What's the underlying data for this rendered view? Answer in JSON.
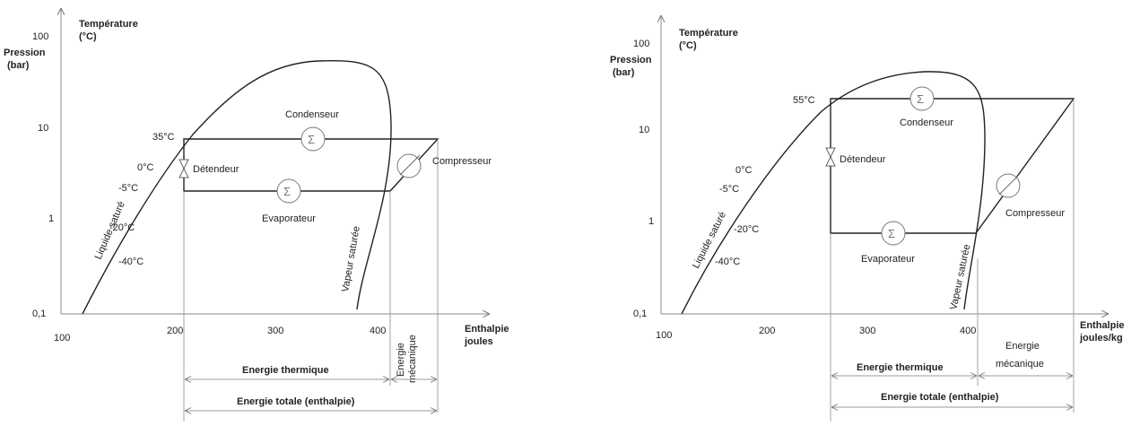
{
  "diagrams": [
    {
      "axis_y_top": "Température",
      "axis_y_unit": "(°C)",
      "axis_y_label": "Pression",
      "axis_y_label_unit": "(bar)",
      "y_ticks": [
        "100",
        "10",
        "1",
        "0,1"
      ],
      "x_ticks": [
        "100",
        "200",
        "300",
        "400"
      ],
      "x_label": "Enthalpie",
      "x_label_unit": "joules",
      "temps": [
        "35°C",
        "0°C",
        "-5°C",
        "-20°C",
        "-40°C"
      ],
      "condenseur": "Condenseur",
      "evaporateur": "Evaporateur",
      "detendeur": "Détendeur",
      "compresseur": "Compresseur",
      "liquide": "Liquide saturé",
      "vapeur": "Vapeur saturée",
      "energie_thermique": "Energie thermique",
      "energie_meca_1": "Energie",
      "energie_meca_2": "mécanique",
      "energie_totale": "Energie totale (enthalpie)"
    },
    {
      "axis_y_top": "Température",
      "axis_y_unit": "(°C)",
      "axis_y_label": "Pression",
      "axis_y_label_unit": "(bar)",
      "y_ticks": [
        "100",
        "10",
        "1",
        "0,1"
      ],
      "x_ticks": [
        "100",
        "200",
        "300",
        "400"
      ],
      "x_label": "Enthalpie",
      "x_label_unit": "joules/kg",
      "temps": [
        "55°C",
        "0°C",
        "-5°C",
        "-20°C",
        "-40°C"
      ],
      "condenseur": "Condenseur",
      "evaporateur": "Evaporateur",
      "detendeur": "Détendeur",
      "compresseur": "Compresseur",
      "liquide": "Liquide saturé",
      "vapeur": "Vapeur saturée",
      "energie_thermique": "Energie thermique",
      "energie_meca_1": "Energie",
      "energie_meca_2": "mécanique",
      "energie_totale": "Energie totale (enthalpie)"
    }
  ]
}
